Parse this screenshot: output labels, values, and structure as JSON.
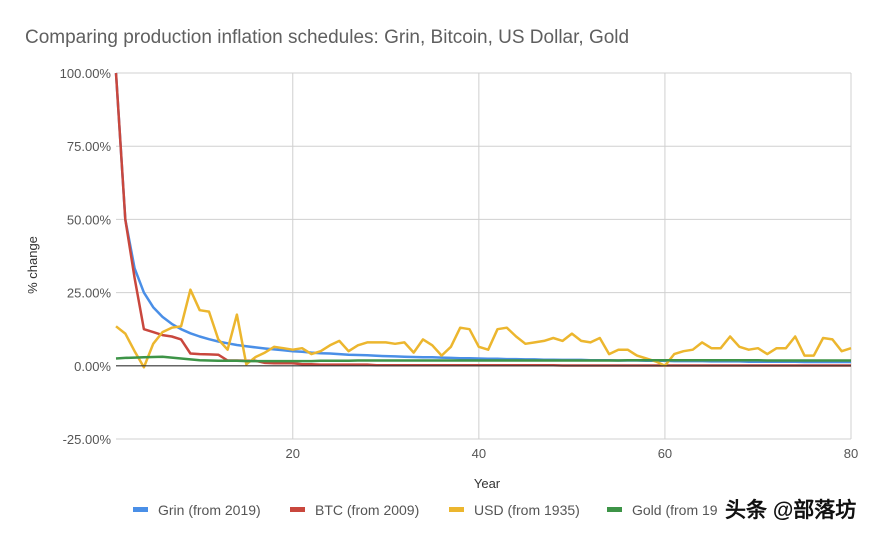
{
  "chart_data": {
    "type": "line",
    "title": "Comparing production inflation schedules: Grin, Bitcoin, US Dollar, Gold",
    "xlabel": "Year",
    "ylabel": "% change",
    "xlim": [
      1,
      80
    ],
    "ylim": [
      -25,
      100
    ],
    "x_ticks": [
      "20",
      "40",
      "60",
      "80"
    ],
    "x_tick_values": [
      20,
      40,
      60,
      80
    ],
    "y_ticks": [
      "100.00%",
      "75.00%",
      "50.00%",
      "25.00%",
      "0.00%",
      "-25.00%"
    ],
    "y_tick_values": [
      100,
      75,
      50,
      25,
      0,
      -25
    ],
    "grid": true,
    "legend_position": "bottom",
    "series": [
      {
        "name": "Grin (from 2019)",
        "color": "#4a8fe7",
        "values": [
          100,
          50,
          33.3,
          25,
          20,
          16.7,
          14.3,
          12.5,
          11.1,
          10,
          9.1,
          8.3,
          7.7,
          7.1,
          6.7,
          6.3,
          5.9,
          5.6,
          5.3,
          5,
          4.8,
          4.5,
          4.3,
          4.2,
          4,
          3.8,
          3.7,
          3.6,
          3.4,
          3.3,
          3.2,
          3.1,
          3,
          2.9,
          2.9,
          2.8,
          2.7,
          2.6,
          2.6,
          2.5,
          2.4,
          2.4,
          2.3,
          2.3,
          2.2,
          2.2,
          2.1,
          2.1,
          2,
          2,
          2,
          1.9,
          1.9,
          1.9,
          1.8,
          1.8,
          1.8,
          1.7,
          1.7,
          1.7,
          1.6,
          1.6,
          1.6,
          1.6,
          1.5,
          1.5,
          1.5,
          1.5,
          1.4,
          1.4,
          1.4,
          1.4,
          1.4,
          1.4,
          1.3,
          1.3,
          1.3,
          1.3,
          1.3,
          1.3
        ]
      },
      {
        "name": "BTC (from 2009)",
        "color": "#c9473d",
        "values": [
          100,
          50,
          30,
          12.5,
          11.5,
          10.5,
          10,
          9,
          4.2,
          4,
          3.9,
          3.8,
          1.8,
          1.8,
          1.7,
          1.7,
          1,
          0.9,
          0.9,
          0.9,
          0.5,
          0.5,
          0.4,
          0.4,
          0.4,
          0.4,
          0.4,
          0.4,
          0.2,
          0.2,
          0.2,
          0.2,
          0.2,
          0.2,
          0.2,
          0.2,
          0.2,
          0.2,
          0.2,
          0.2,
          0.2,
          0.2,
          0.2,
          0.2,
          0.2,
          0.2,
          0.2,
          0.2,
          0.1,
          0.1,
          0.1,
          0.1,
          0.1,
          0.1,
          0.1,
          0.1,
          0.1,
          0.1,
          0.1,
          0.1,
          0.1,
          0.1,
          0.1,
          0.1,
          0.1,
          0.1,
          0.1,
          0.1,
          0.1,
          0.1,
          0.1,
          0.1,
          0.1,
          0.1,
          0.1,
          0.1,
          0.1,
          0.1,
          0.1,
          0.1
        ]
      },
      {
        "name": "USD (from 1935)",
        "color": "#ecb62e",
        "values": [
          13.5,
          11,
          5,
          -0.5,
          7.5,
          11.5,
          13,
          13.5,
          26,
          19,
          18.5,
          9,
          5.5,
          17.5,
          0.5,
          3,
          4.5,
          6.5,
          6,
          5.5,
          6,
          4,
          5,
          7,
          8.5,
          5,
          7,
          8,
          8,
          8,
          7.5,
          8,
          4.5,
          9,
          7,
          3.5,
          6.5,
          13,
          12.5,
          6.5,
          5.5,
          12.5,
          13,
          10,
          7.5,
          8,
          8.5,
          9.5,
          8.5,
          11,
          8.5,
          8,
          9.5,
          4,
          5.5,
          5.5,
          3.5,
          2.5,
          1.5,
          0,
          4,
          5,
          5.5,
          8,
          6,
          6,
          10,
          6.5,
          5.5,
          6,
          4,
          6,
          6,
          10,
          3.5,
          3.5,
          9.5,
          9,
          5,
          6
        ]
      },
      {
        "name": "Gold (from 19",
        "color": "#3d9447",
        "values": [
          2.5,
          2.7,
          2.8,
          2.9,
          3,
          3.1,
          2.8,
          2.5,
          2.2,
          1.9,
          1.8,
          1.7,
          1.7,
          1.7,
          1.6,
          1.6,
          1.6,
          1.6,
          1.6,
          1.6,
          1.6,
          1.6,
          1.7,
          1.7,
          1.7,
          1.7,
          1.8,
          1.8,
          1.8,
          1.8,
          1.8,
          1.8,
          1.8,
          1.8,
          1.8,
          1.8,
          1.8,
          1.8,
          1.8,
          1.8,
          1.8,
          1.8,
          1.8,
          1.8,
          1.8,
          1.8,
          1.8,
          1.8,
          1.8,
          1.8,
          1.8,
          1.8,
          1.8,
          1.8,
          1.8,
          1.9,
          1.9,
          1.9,
          1.9,
          1.9,
          1.9,
          1.9,
          1.9,
          1.9,
          1.9,
          1.9,
          1.9,
          1.9,
          1.9,
          1.9,
          1.8,
          1.8,
          1.8,
          1.8,
          1.8,
          1.8,
          1.8,
          1.8,
          1.8,
          1.8
        ]
      }
    ]
  },
  "watermark": "头条 @部落坊"
}
